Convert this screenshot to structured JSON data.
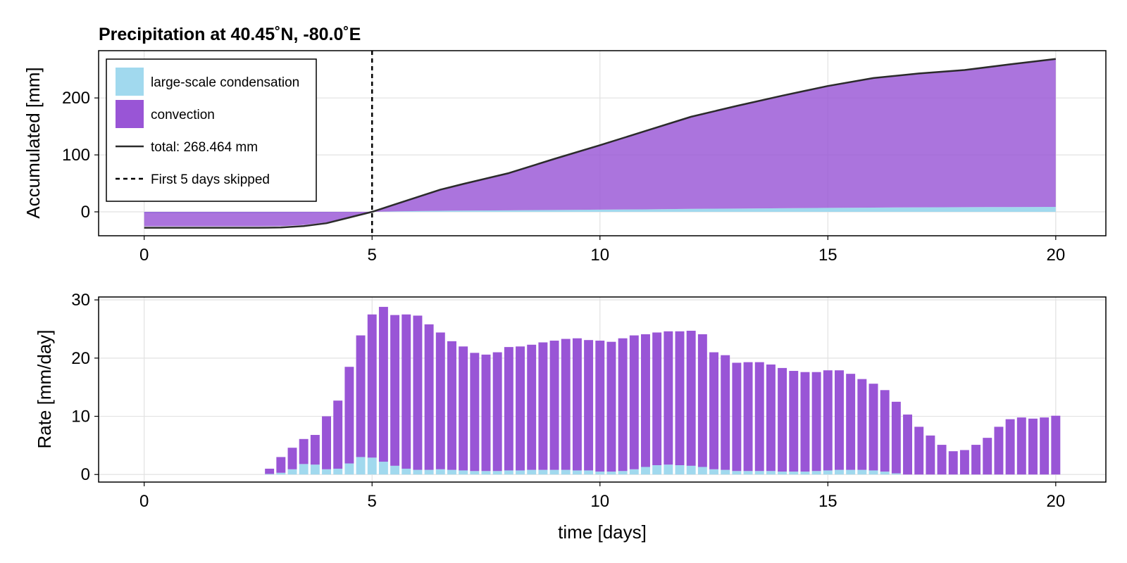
{
  "chart_data": [
    {
      "panel": "top",
      "type": "area",
      "title": "Precipitation at 40.45˚N, -80.0˚E",
      "xlabel": "",
      "ylabel": "Accumulated [mm]",
      "xlim": [
        -1,
        21.1
      ],
      "ylim": [
        -42,
        283
      ],
      "x_ticks": [
        0,
        5,
        10,
        15,
        20
      ],
      "x_tick_labels": [
        "0",
        "5",
        "10",
        "15",
        "20"
      ],
      "y_ticks": [
        0,
        100,
        200
      ],
      "y_tick_labels": [
        "0",
        "100",
        "200"
      ],
      "grid": true,
      "legend_position": "top-left",
      "legend": [
        {
          "label": "large-scale condensation",
          "kind": "patch",
          "color": "#a1d9ee"
        },
        {
          "label": "convection",
          "kind": "patch",
          "color": "#9955d6"
        },
        {
          "label": "total: 268.464 mm",
          "kind": "line",
          "color": "#2b2b2b"
        },
        {
          "label": "First 5 days skipped",
          "kind": "dashed-line",
          "color": "#000000"
        }
      ],
      "vline_x": 5,
      "x": [
        0,
        2.5,
        3,
        3.5,
        4,
        4.5,
        5,
        5.5,
        6,
        6.5,
        7,
        8,
        9,
        10,
        11,
        12,
        13,
        14,
        15,
        16,
        17,
        18,
        19,
        20
      ],
      "series": [
        {
          "name": "large-scale condensation",
          "color": "#a1d9ee",
          "values": [
            -2.5,
            -2.5,
            -2.3,
            -2,
            -1.5,
            -0.8,
            0,
            0.8,
            1.4,
            1.9,
            2.2,
            2.7,
            3.3,
            3.8,
            4.4,
            5.2,
            5.8,
            6.3,
            6.9,
            7.5,
            7.9,
            8.2,
            8.4,
            8.6
          ]
        },
        {
          "name": "convection",
          "color": "#9955d6",
          "values": [
            -25.5,
            -25.5,
            -25.2,
            -23,
            -18.5,
            -9.2,
            0,
            12.2,
            24.6,
            37.1,
            46.8,
            65.3,
            89.7,
            113.2,
            137.6,
            161.8,
            180.2,
            197.7,
            214.1,
            227.5,
            235.1,
            240.8,
            250.6,
            259.9
          ]
        }
      ],
      "total": {
        "name": "total: 268.464 mm",
        "color": "#2b2b2b",
        "values": [
          -28,
          -28,
          -27.5,
          -25,
          -20,
          -10,
          0,
          13,
          26,
          39,
          49,
          68,
          93,
          117,
          142,
          167,
          186,
          204,
          221,
          235,
          243,
          249,
          259,
          268.464
        ]
      }
    },
    {
      "panel": "bottom",
      "type": "bar",
      "stacked": true,
      "title": "",
      "xlabel": "time [days]",
      "ylabel": "Rate [mm/day]",
      "xlim": [
        -1,
        21.1
      ],
      "ylim": [
        -1.3,
        30.5
      ],
      "x_ticks": [
        0,
        5,
        10,
        15,
        20
      ],
      "x_tick_labels": [
        "0",
        "5",
        "10",
        "15",
        "20"
      ],
      "y_ticks": [
        0,
        10,
        20,
        30
      ],
      "y_tick_labels": [
        "0",
        "10",
        "20",
        "30"
      ],
      "grid": true,
      "bar_width_days": 0.2,
      "x": [
        2.75,
        3.0,
        3.25,
        3.5,
        3.75,
        4.0,
        4.25,
        4.5,
        4.75,
        5.0,
        5.25,
        5.5,
        5.75,
        6.0,
        6.25,
        6.5,
        6.75,
        7.0,
        7.25,
        7.5,
        7.75,
        8.0,
        8.25,
        8.5,
        8.75,
        9.0,
        9.25,
        9.5,
        9.75,
        10.0,
        10.25,
        10.5,
        10.75,
        11.0,
        11.25,
        11.5,
        11.75,
        12.0,
        12.25,
        12.5,
        12.75,
        13.0,
        13.25,
        13.5,
        13.75,
        14.0,
        14.25,
        14.5,
        14.75,
        15.0,
        15.25,
        15.5,
        15.75,
        16.0,
        16.25,
        16.5,
        16.75,
        17.0,
        17.25,
        17.5,
        17.75,
        18.0,
        18.25,
        18.5,
        18.75,
        19.0,
        19.25,
        19.5,
        19.75,
        20.0
      ],
      "series": [
        {
          "name": "large-scale condensation",
          "color": "#a1d9ee",
          "values": [
            0.1,
            0.3,
            0.9,
            1.8,
            1.7,
            0.9,
            1.0,
            1.9,
            3.0,
            2.9,
            2.2,
            1.5,
            1.0,
            0.8,
            0.8,
            0.9,
            0.8,
            0.7,
            0.6,
            0.6,
            0.6,
            0.7,
            0.7,
            0.8,
            0.8,
            0.8,
            0.8,
            0.7,
            0.7,
            0.5,
            0.5,
            0.6,
            0.9,
            1.3,
            1.6,
            1.7,
            1.6,
            1.5,
            1.3,
            0.9,
            0.8,
            0.6,
            0.6,
            0.6,
            0.6,
            0.5,
            0.5,
            0.5,
            0.6,
            0.7,
            0.8,
            0.8,
            0.8,
            0.7,
            0.5,
            0.2,
            0,
            0,
            0,
            0,
            0,
            0,
            0,
            0,
            0,
            0,
            0,
            0,
            0,
            0
          ]
        },
        {
          "name": "convection",
          "color": "#9955d6",
          "values": [
            0.9,
            2.7,
            3.7,
            4.3,
            5.1,
            9.1,
            11.7,
            16.6,
            20.9,
            24.6,
            26.6,
            25.9,
            26.5,
            26.5,
            25.0,
            23.5,
            22.1,
            21.3,
            20.3,
            20.0,
            20.4,
            21.2,
            21.3,
            21.5,
            21.9,
            22.2,
            22.5,
            22.7,
            22.4,
            22.5,
            22.3,
            22.8,
            23.0,
            22.8,
            22.8,
            22.9,
            23.0,
            23.2,
            22.8,
            20.1,
            19.7,
            18.6,
            18.7,
            18.7,
            18.3,
            17.8,
            17.3,
            17.1,
            17.0,
            17.2,
            17.1,
            16.5,
            15.6,
            14.9,
            14.0,
            12.3,
            10.3,
            8.2,
            6.7,
            5.1,
            4.0,
            4.2,
            5.1,
            6.3,
            8.2,
            9.5,
            9.8,
            9.6,
            9.8,
            10.1
          ]
        }
      ]
    }
  ]
}
